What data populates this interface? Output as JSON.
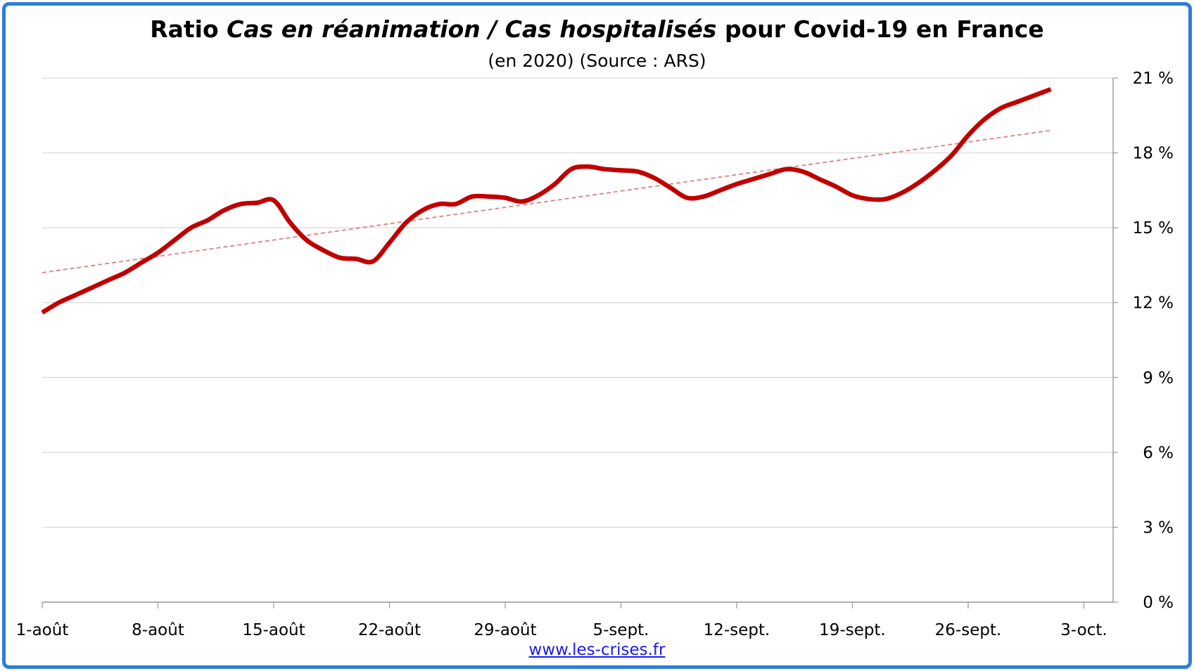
{
  "title_parts": {
    "p1": "Ratio ",
    "p2": "Cas en réanimation / Cas hospitalisés",
    "p3": " pour Covid-19 en France"
  },
  "subtitle": "(en 2020) (Source : ARS)",
  "footer_link": "www.les-crises.fr",
  "colors": {
    "frame": "#2b7fd8",
    "series": "#c00000",
    "trend": "#e08a8a",
    "grid": "#d9d9d9",
    "link": "#1a1aee"
  },
  "chart_data": {
    "type": "line",
    "x_tick_labels": [
      "1-août",
      "8-août",
      "15-août",
      "22-août",
      "29-août",
      "5-sept.",
      "12-sept.",
      "19-sept.",
      "26-sept.",
      "3-oct."
    ],
    "y_tick_labels": [
      "0 %",
      "3 %",
      "6 %",
      "9 %",
      "12 %",
      "15 %",
      "18 %",
      "21 %"
    ],
    "ylim": [
      0,
      21
    ],
    "y_axis_side": "right",
    "grid": true,
    "x_start": "2020-08-01",
    "series": [
      {
        "style": "solid",
        "values": [
          11.6,
          12.0,
          12.3,
          12.6,
          12.9,
          13.2,
          13.6,
          14.0,
          14.5,
          15.0,
          15.3,
          15.7,
          15.95,
          16.0,
          16.1,
          15.2,
          14.5,
          14.1,
          13.8,
          13.75,
          13.65,
          14.4,
          15.2,
          15.7,
          15.95,
          15.95,
          16.25,
          16.25,
          16.2,
          16.05,
          16.3,
          16.75,
          17.35,
          17.45,
          17.35,
          17.3,
          17.25,
          17.0,
          16.6,
          16.2,
          16.25,
          16.5,
          16.75,
          16.95,
          17.15,
          17.35,
          17.25,
          16.95,
          16.65,
          16.3,
          16.15,
          16.15,
          16.4,
          16.8,
          17.3,
          17.9,
          18.7,
          19.35,
          19.8,
          20.05,
          20.3,
          20.55
        ]
      },
      {
        "style": "dashed",
        "values": [
          13.2,
          18.9
        ]
      }
    ]
  }
}
